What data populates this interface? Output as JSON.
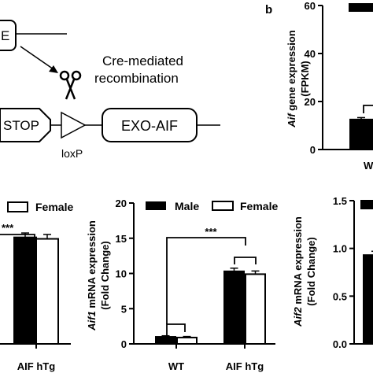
{
  "diagram": {
    "partial_box_label": "E",
    "recombination_label": "Cre-mediated recombination",
    "recombination_line1": "Cre-mediated",
    "recombination_line2": "recombination",
    "stop_label": "STOP",
    "loxp_label": "loxP",
    "exo_label": "EXO-AIF"
  },
  "panel_labels": {
    "b": "b"
  },
  "legend": {
    "male": "Male",
    "female": "Female"
  },
  "colors": {
    "male": "#000000",
    "female": "#ffffff",
    "axis": "#000000"
  },
  "chart_data": [
    {
      "type": "bar",
      "panel": "b",
      "ylabel_italic": "Aif",
      "ylabel_rest": " gene expression",
      "ylabel_line2": "(FPKM)",
      "ylim": [
        0,
        60
      ],
      "yticks": [
        "0",
        "20",
        "40",
        "60"
      ],
      "categories": [
        "W"
      ],
      "series": [
        {
          "name": "",
          "values": [
            12.5
          ],
          "errors": [
            0.8
          ]
        }
      ],
      "grid": false
    },
    {
      "type": "bar",
      "ylim": [
        0,
        18
      ],
      "categories": [
        "AIF hTg"
      ],
      "series": [
        {
          "name": "Male",
          "values": [
            14.5
          ],
          "errors": [
            0.6
          ]
        },
        {
          "name": "Female",
          "values": [
            14.3
          ],
          "errors": [
            0.6
          ]
        }
      ],
      "significance": "***",
      "legend_position": "top",
      "grid": false
    },
    {
      "type": "bar",
      "ylabel_italic": "Aif1",
      "ylabel_rest": " mRNA expression",
      "ylabel_line2": "(Fold Change)",
      "ylim": [
        0,
        20
      ],
      "yticks": [
        "0",
        "5",
        "10",
        "15",
        "20"
      ],
      "categories": [
        "WT",
        "AIF hTg"
      ],
      "series": [
        {
          "name": "Male",
          "values": [
            1.0,
            10.3
          ],
          "errors": [
            0.15,
            0.45
          ]
        },
        {
          "name": "Female",
          "values": [
            0.9,
            9.9
          ],
          "errors": [
            0.15,
            0.45
          ]
        }
      ],
      "significance": "***",
      "legend_position": "top",
      "grid": false
    },
    {
      "type": "bar",
      "ylabel_italic": "Aif2",
      "ylabel_rest": " mRNA expression",
      "ylabel_line2": "(Fold Change)",
      "ylim": [
        0,
        1.5
      ],
      "yticks": [
        "0.0",
        "0.5",
        "1.0",
        "1.5"
      ],
      "categories": [
        ""
      ],
      "series": [
        {
          "name": "Male",
          "values": [
            0.93
          ],
          "errors": [
            0.04
          ]
        }
      ],
      "legend_position": "top",
      "grid": false
    }
  ]
}
